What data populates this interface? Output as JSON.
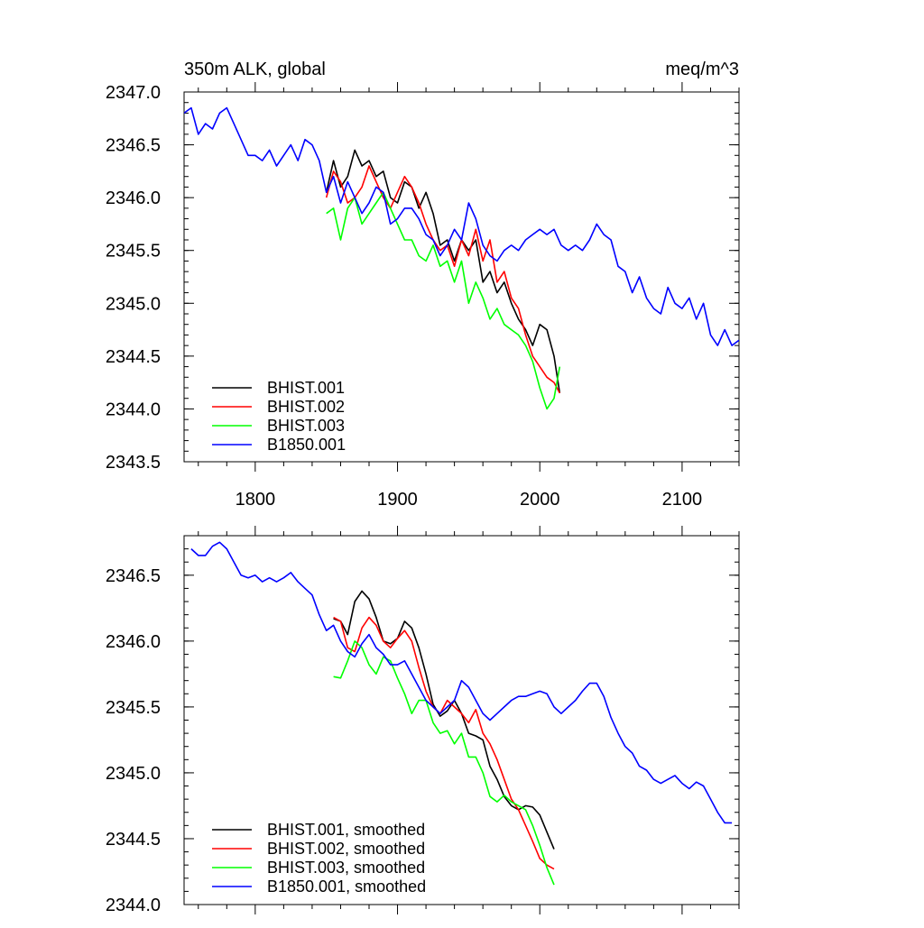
{
  "chart_data": [
    {
      "type": "line",
      "title_left": "350m ALK, global",
      "title_right": "meq/m^3",
      "xlabel": "",
      "ylabel": "",
      "xlim": [
        1750,
        2140
      ],
      "ylim": [
        2343.5,
        2347.0
      ],
      "xticks": [
        1800,
        1900,
        2000,
        2100
      ],
      "xtick_labels": [
        "1800",
        "1900",
        "2000",
        "2100"
      ],
      "yticks": [
        2343.5,
        2344.0,
        2344.5,
        2345.0,
        2345.5,
        2346.0,
        2346.5,
        2347.0
      ],
      "ytick_labels": [
        "2343.5",
        "2344.0",
        "2344.5",
        "2345.0",
        "2345.5",
        "2346.0",
        "2346.5",
        "2347.0"
      ],
      "legend_position": "bottom-left",
      "series": [
        {
          "name": "BHIST.001",
          "color": "#000000",
          "x": [
            1850,
            1855,
            1860,
            1865,
            1870,
            1875,
            1880,
            1885,
            1890,
            1895,
            1900,
            1905,
            1910,
            1915,
            1920,
            1925,
            1930,
            1935,
            1940,
            1945,
            1950,
            1955,
            1960,
            1965,
            1970,
            1975,
            1980,
            1985,
            1990,
            1995,
            2000,
            2005,
            2010,
            2014
          ],
          "y": [
            2346.05,
            2346.35,
            2346.1,
            2346.2,
            2346.45,
            2346.3,
            2346.35,
            2346.2,
            2346.25,
            2346.0,
            2345.95,
            2346.15,
            2346.1,
            2345.9,
            2346.05,
            2345.85,
            2345.55,
            2345.6,
            2345.4,
            2345.6,
            2345.5,
            2345.6,
            2345.2,
            2345.3,
            2345.1,
            2345.2,
            2345.0,
            2344.85,
            2344.75,
            2344.6,
            2344.8,
            2344.75,
            2344.5,
            2344.15
          ]
        },
        {
          "name": "BHIST.002",
          "color": "#ff0000",
          "x": [
            1850,
            1855,
            1860,
            1865,
            1870,
            1875,
            1880,
            1885,
            1890,
            1895,
            1900,
            1905,
            1910,
            1915,
            1920,
            1925,
            1930,
            1935,
            1940,
            1945,
            1950,
            1955,
            1960,
            1965,
            1970,
            1975,
            1980,
            1985,
            1990,
            1995,
            2000,
            2005,
            2010,
            2014
          ],
          "y": [
            2346.0,
            2346.25,
            2346.15,
            2345.95,
            2346.0,
            2346.1,
            2346.3,
            2346.15,
            2346.0,
            2345.9,
            2346.05,
            2346.2,
            2346.1,
            2345.95,
            2345.75,
            2345.6,
            2345.5,
            2345.55,
            2345.35,
            2345.6,
            2345.45,
            2345.7,
            2345.4,
            2345.6,
            2345.2,
            2345.3,
            2345.05,
            2344.95,
            2344.7,
            2344.5,
            2344.4,
            2344.3,
            2344.25,
            2344.15
          ]
        },
        {
          "name": "BHIST.003",
          "color": "#00ff00",
          "x": [
            1850,
            1855,
            1860,
            1865,
            1870,
            1875,
            1880,
            1885,
            1890,
            1895,
            1900,
            1905,
            1910,
            1915,
            1920,
            1925,
            1930,
            1935,
            1940,
            1945,
            1950,
            1955,
            1960,
            1965,
            1970,
            1975,
            1980,
            1985,
            1990,
            1995,
            2000,
            2005,
            2010,
            2014
          ],
          "y": [
            2345.85,
            2345.9,
            2345.6,
            2345.9,
            2346.0,
            2345.75,
            2345.85,
            2345.95,
            2346.05,
            2345.9,
            2345.75,
            2345.6,
            2345.6,
            2345.45,
            2345.4,
            2345.55,
            2345.35,
            2345.4,
            2345.2,
            2345.4,
            2345.0,
            2345.2,
            2345.05,
            2344.85,
            2344.95,
            2344.8,
            2344.75,
            2344.7,
            2344.6,
            2344.45,
            2344.2,
            2344.0,
            2344.1,
            2344.4
          ]
        },
        {
          "name": "B1850.001",
          "color": "#0000ff",
          "x": [
            1750,
            1755,
            1760,
            1765,
            1770,
            1775,
            1780,
            1785,
            1790,
            1795,
            1800,
            1805,
            1810,
            1815,
            1820,
            1825,
            1830,
            1835,
            1840,
            1845,
            1850,
            1855,
            1860,
            1865,
            1870,
            1875,
            1880,
            1885,
            1890,
            1895,
            1900,
            1905,
            1910,
            1915,
            1920,
            1925,
            1930,
            1935,
            1940,
            1945,
            1950,
            1955,
            1960,
            1965,
            1970,
            1975,
            1980,
            1985,
            1990,
            1995,
            2000,
            2005,
            2010,
            2015,
            2020,
            2025,
            2030,
            2035,
            2040,
            2045,
            2050,
            2055,
            2060,
            2065,
            2070,
            2075,
            2080,
            2085,
            2090,
            2095,
            2100,
            2105,
            2110,
            2115,
            2120,
            2125,
            2130,
            2135,
            2140
          ],
          "y": [
            2346.8,
            2346.85,
            2346.6,
            2346.7,
            2346.65,
            2346.8,
            2346.85,
            2346.7,
            2346.55,
            2346.4,
            2346.4,
            2346.35,
            2346.45,
            2346.3,
            2346.4,
            2346.5,
            2346.35,
            2346.55,
            2346.5,
            2346.35,
            2346.05,
            2346.2,
            2345.95,
            2346.15,
            2346.0,
            2345.85,
            2345.95,
            2346.1,
            2346.05,
            2345.75,
            2345.8,
            2345.9,
            2345.9,
            2345.8,
            2345.65,
            2345.6,
            2345.45,
            2345.55,
            2345.7,
            2345.6,
            2345.95,
            2345.8,
            2345.55,
            2345.45,
            2345.4,
            2345.5,
            2345.55,
            2345.5,
            2345.6,
            2345.65,
            2345.7,
            2345.65,
            2345.7,
            2345.55,
            2345.5,
            2345.55,
            2345.5,
            2345.6,
            2345.75,
            2345.65,
            2345.6,
            2345.35,
            2345.3,
            2345.1,
            2345.25,
            2345.05,
            2344.95,
            2344.9,
            2345.15,
            2345.0,
            2344.95,
            2345.05,
            2344.85,
            2345.0,
            2344.7,
            2344.6,
            2344.75,
            2344.6,
            2344.65
          ]
        }
      ]
    },
    {
      "type": "line",
      "title_left": "",
      "title_right": "",
      "xlabel": "",
      "ylabel": "",
      "xlim": [
        1750,
        2140
      ],
      "ylim": [
        2344.0,
        2346.8
      ],
      "xticks": [
        1800,
        1900,
        2000,
        2100
      ],
      "xtick_labels": [],
      "yticks": [
        2344.0,
        2344.5,
        2345.0,
        2345.5,
        2346.0,
        2346.5
      ],
      "ytick_labels": [
        "2344.0",
        "2344.5",
        "2345.0",
        "2345.5",
        "2346.0",
        "2346.5"
      ],
      "legend_position": "bottom-left",
      "series": [
        {
          "name": "BHIST.001, smoothed",
          "color": "#000000",
          "x": [
            1855,
            1860,
            1865,
            1870,
            1875,
            1880,
            1885,
            1890,
            1895,
            1900,
            1905,
            1910,
            1915,
            1920,
            1925,
            1930,
            1935,
            1940,
            1945,
            1950,
            1955,
            1960,
            1965,
            1970,
            1975,
            1980,
            1985,
            1990,
            1995,
            2000,
            2005,
            2010
          ],
          "y": [
            2346.17,
            2346.15,
            2346.05,
            2346.3,
            2346.38,
            2346.32,
            2346.18,
            2346.0,
            2345.98,
            2346.02,
            2346.15,
            2346.1,
            2345.95,
            2345.75,
            2345.52,
            2345.43,
            2345.47,
            2345.55,
            2345.45,
            2345.3,
            2345.28,
            2345.25,
            2345.05,
            2344.95,
            2344.82,
            2344.75,
            2344.72,
            2344.75,
            2344.74,
            2344.68,
            2344.55,
            2344.42
          ]
        },
        {
          "name": "BHIST.002, smoothed",
          "color": "#ff0000",
          "x": [
            1855,
            1860,
            1865,
            1870,
            1875,
            1880,
            1885,
            1890,
            1895,
            1900,
            1905,
            1910,
            1915,
            1920,
            1925,
            1930,
            1935,
            1940,
            1945,
            1950,
            1955,
            1960,
            1965,
            1970,
            1975,
            1980,
            1985,
            1990,
            1995,
            2000,
            2005,
            2010
          ],
          "y": [
            2346.18,
            2346.15,
            2345.95,
            2345.92,
            2346.1,
            2346.18,
            2346.12,
            2346.0,
            2345.95,
            2346.02,
            2346.08,
            2346.0,
            2345.8,
            2345.62,
            2345.5,
            2345.45,
            2345.55,
            2345.5,
            2345.45,
            2345.38,
            2345.48,
            2345.3,
            2345.22,
            2345.1,
            2344.95,
            2344.8,
            2344.72,
            2344.6,
            2344.48,
            2344.35,
            2344.3,
            2344.27
          ]
        },
        {
          "name": "BHIST.003, smoothed",
          "color": "#00ff00",
          "x": [
            1855,
            1860,
            1865,
            1870,
            1875,
            1880,
            1885,
            1890,
            1895,
            1900,
            1905,
            1910,
            1915,
            1920,
            1925,
            1930,
            1935,
            1940,
            1945,
            1950,
            1955,
            1960,
            1965,
            1970,
            1975,
            1980,
            1985,
            1990,
            1995,
            2000,
            2005,
            2010
          ],
          "y": [
            2345.73,
            2345.72,
            2345.85,
            2346.0,
            2345.95,
            2345.82,
            2345.75,
            2345.88,
            2345.85,
            2345.72,
            2345.6,
            2345.45,
            2345.55,
            2345.55,
            2345.38,
            2345.3,
            2345.32,
            2345.22,
            2345.3,
            2345.12,
            2345.12,
            2345.0,
            2344.82,
            2344.78,
            2344.83,
            2344.78,
            2344.75,
            2344.72,
            2344.6,
            2344.45,
            2344.28,
            2344.15
          ]
        },
        {
          "name": "B1850.001, smoothed",
          "color": "#0000ff",
          "x": [
            1755,
            1760,
            1765,
            1770,
            1775,
            1780,
            1785,
            1790,
            1795,
            1800,
            1805,
            1810,
            1815,
            1820,
            1825,
            1830,
            1835,
            1840,
            1845,
            1850,
            1855,
            1860,
            1865,
            1870,
            1875,
            1880,
            1885,
            1890,
            1895,
            1900,
            1905,
            1910,
            1915,
            1920,
            1925,
            1930,
            1935,
            1940,
            1945,
            1950,
            1955,
            1960,
            1965,
            1970,
            1975,
            1980,
            1985,
            1990,
            1995,
            2000,
            2005,
            2010,
            2015,
            2020,
            2025,
            2030,
            2035,
            2040,
            2045,
            2050,
            2055,
            2060,
            2065,
            2070,
            2075,
            2080,
            2085,
            2090,
            2095,
            2100,
            2105,
            2110,
            2115,
            2120,
            2125,
            2130,
            2135
          ],
          "y": [
            2346.7,
            2346.65,
            2346.65,
            2346.72,
            2346.75,
            2346.7,
            2346.6,
            2346.5,
            2346.48,
            2346.5,
            2346.45,
            2346.48,
            2346.45,
            2346.48,
            2346.52,
            2346.45,
            2346.4,
            2346.35,
            2346.2,
            2346.08,
            2346.12,
            2346.0,
            2345.92,
            2345.88,
            2345.98,
            2346.05,
            2345.95,
            2345.9,
            2345.82,
            2345.82,
            2345.85,
            2345.75,
            2345.65,
            2345.55,
            2345.5,
            2345.45,
            2345.5,
            2345.55,
            2345.7,
            2345.65,
            2345.55,
            2345.45,
            2345.4,
            2345.45,
            2345.5,
            2345.55,
            2345.58,
            2345.58,
            2345.6,
            2345.62,
            2345.6,
            2345.5,
            2345.45,
            2345.5,
            2345.55,
            2345.62,
            2345.68,
            2345.68,
            2345.58,
            2345.42,
            2345.3,
            2345.2,
            2345.15,
            2345.05,
            2345.02,
            2344.95,
            2344.92,
            2344.95,
            2344.98,
            2344.92,
            2344.88,
            2344.93,
            2344.9,
            2344.8,
            2344.7,
            2344.62,
            2344.62
          ]
        }
      ]
    }
  ]
}
